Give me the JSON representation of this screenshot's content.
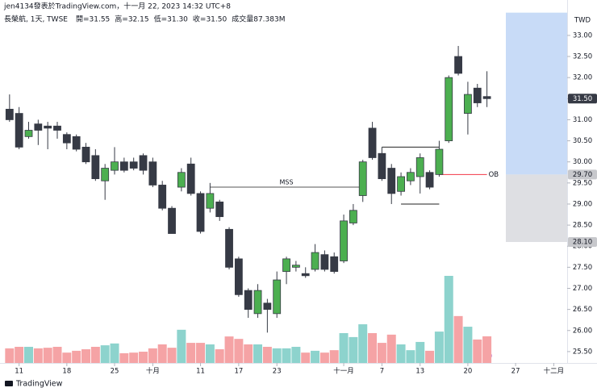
{
  "chart_data": {
    "type": "candlestick",
    "byline": "jen4134發表於TradingView.com，十一月 22, 2023 14:32 UTC+8",
    "symbol": "長榮航, 1天, TWSE",
    "ohlc_labels": [
      "開=31.55",
      "高=32.15",
      "低=31.30",
      "收=31.50",
      "成交量87.383M"
    ],
    "currency": "TWD",
    "brand": "TradingView",
    "up_color": "#4caf50",
    "down_color": "#363a45",
    "up_volume_color": "#8dd3cd",
    "down_volume_color": "#f5a3a5",
    "open": [
      31.25,
      31.15,
      30.6,
      30.9,
      30.85,
      30.85,
      30.65,
      30.6,
      30.35,
      30.15,
      29.55,
      29.8,
      30.0,
      30.0,
      30.15,
      30.0,
      29.45,
      28.9,
      29.4,
      29.95,
      29.25,
      28.9,
      29.05,
      28.4,
      27.7,
      26.95,
      26.4,
      26.65,
      26.4,
      27.4,
      27.5,
      27.35,
      27.45,
      27.8,
      27.75,
      27.65,
      28.55,
      29.2,
      30.8,
      30.2,
      29.85,
      29.3,
      29.55,
      29.65,
      29.75,
      29.7,
      30.5,
      32.5,
      31.15,
      31.75,
      31.55
    ],
    "high": [
      31.6,
      31.3,
      30.95,
      31.0,
      30.95,
      30.95,
      30.7,
      30.65,
      30.45,
      30.3,
      29.95,
      30.35,
      30.1,
      30.1,
      30.2,
      30.1,
      29.55,
      28.95,
      29.85,
      30.1,
      29.3,
      29.5,
      29.1,
      28.45,
      27.75,
      27.0,
      27.1,
      26.75,
      27.4,
      27.75,
      27.65,
      27.5,
      28.05,
      27.9,
      27.85,
      28.75,
      29.0,
      30.05,
      30.95,
      30.35,
      29.95,
      29.75,
      29.85,
      30.2,
      29.8,
      30.5,
      32.05,
      32.75,
      31.9,
      31.85,
      32.15
    ],
    "low": [
      30.95,
      30.3,
      30.55,
      30.4,
      30.3,
      30.55,
      30.3,
      30.25,
      29.95,
      29.55,
      29.1,
      29.7,
      29.75,
      29.8,
      29.7,
      29.4,
      28.85,
      28.3,
      29.3,
      29.2,
      28.3,
      28.8,
      28.6,
      27.45,
      26.8,
      26.3,
      26.3,
      25.95,
      26.3,
      27.1,
      27.4,
      27.25,
      27.4,
      27.4,
      27.35,
      27.6,
      28.5,
      29.05,
      30.05,
      29.55,
      29.0,
      29.2,
      29.45,
      29.25,
      29.35,
      29.65,
      30.45,
      32.05,
      30.65,
      31.3,
      31.3
    ],
    "close": [
      31.0,
      30.35,
      30.75,
      30.75,
      30.8,
      30.75,
      30.45,
      30.3,
      30.0,
      29.6,
      29.85,
      30.0,
      29.8,
      29.85,
      29.8,
      29.45,
      28.9,
      28.3,
      29.75,
      29.25,
      28.35,
      29.25,
      28.7,
      27.5,
      26.85,
      26.5,
      26.95,
      26.5,
      27.2,
      27.7,
      27.55,
      27.3,
      27.85,
      27.45,
      27.4,
      28.6,
      28.85,
      30.0,
      30.1,
      29.6,
      29.25,
      29.65,
      29.75,
      30.1,
      29.4,
      30.3,
      32.0,
      32.1,
      31.6,
      31.4,
      31.5
    ],
    "volume": [
      48,
      53,
      53,
      48,
      50,
      53,
      34,
      40,
      45,
      53,
      58,
      64,
      32,
      34,
      37,
      48,
      61,
      50,
      109,
      66,
      66,
      61,
      45,
      87,
      79,
      61,
      61,
      53,
      48,
      48,
      53,
      34,
      40,
      34,
      42,
      98,
      85,
      127,
      98,
      66,
      93,
      61,
      42,
      69,
      40,
      103,
      286,
      154,
      119,
      77,
      87.4
    ],
    "ylim": [
      25.23,
      33.84
    ],
    "yticks": [
      {
        "value": 33,
        "label": "33.00"
      },
      {
        "value": 32.5,
        "label": "32.50"
      },
      {
        "value": 32,
        "label": "32.00"
      },
      {
        "value": 31.5,
        "label": "31.50"
      },
      {
        "value": 31,
        "label": "31.00"
      },
      {
        "value": 30.5,
        "label": "30.50"
      },
      {
        "value": 30,
        "label": "30.00"
      },
      {
        "value": 29.5,
        "label": "29.50"
      },
      {
        "value": 29,
        "label": "29.00"
      },
      {
        "value": 28.5,
        "label": "28.50"
      },
      {
        "value": 28,
        "label": "28.00"
      },
      {
        "value": 27.5,
        "label": "27.50"
      },
      {
        "value": 27,
        "label": "27.00"
      },
      {
        "value": 26.5,
        "label": "26.50"
      },
      {
        "value": 26,
        "label": "26.00"
      },
      {
        "value": 25.5,
        "label": "25.50"
      }
    ],
    "xlim": [
      -1,
      58.4
    ],
    "xticks": [
      {
        "value": 1,
        "label": "11"
      },
      {
        "value": 6,
        "label": "18"
      },
      {
        "value": 11,
        "label": "25"
      },
      {
        "value": 15,
        "label": "十月"
      },
      {
        "value": 20,
        "label": "11"
      },
      {
        "value": 24,
        "label": "17"
      },
      {
        "value": 28,
        "label": "23"
      },
      {
        "value": 35,
        "label": "十一月"
      },
      {
        "value": 39,
        "label": "7"
      },
      {
        "value": 43,
        "label": "13"
      },
      {
        "value": 48,
        "label": "20"
      },
      {
        "value": 53,
        "label": "27"
      },
      {
        "value": 57,
        "label": "十二月"
      }
    ],
    "zones": [
      {
        "low": 29.7,
        "high": 33.54,
        "color": "#c8dbf7"
      },
      {
        "low": 28.1,
        "high": 29.7,
        "color": "#dedfe3"
      }
    ],
    "price_labels": [
      {
        "value": 31.5,
        "label": "31.50",
        "color": "#363a45",
        "text_color": "#ffffff"
      },
      {
        "value": 29.7,
        "label": "29.70",
        "color": "#c7c8cc",
        "text_color": "#131722"
      },
      {
        "value": 28.1,
        "label": "28.10",
        "color": "#c7c8cc",
        "text_color": "#131722"
      }
    ],
    "annotations": [
      {
        "label": "MSS",
        "value": 29.4,
        "from": 21,
        "to": 37,
        "color": "#555555"
      },
      {
        "label": "OB",
        "value": 29.7,
        "from": 45,
        "to": 50,
        "color": "#f23645"
      },
      {
        "value": 30.35,
        "from": 39,
        "to": 45,
        "color": "#222222"
      },
      {
        "value": 29.0,
        "from": 41,
        "to": 45,
        "color": "#222222"
      }
    ]
  }
}
